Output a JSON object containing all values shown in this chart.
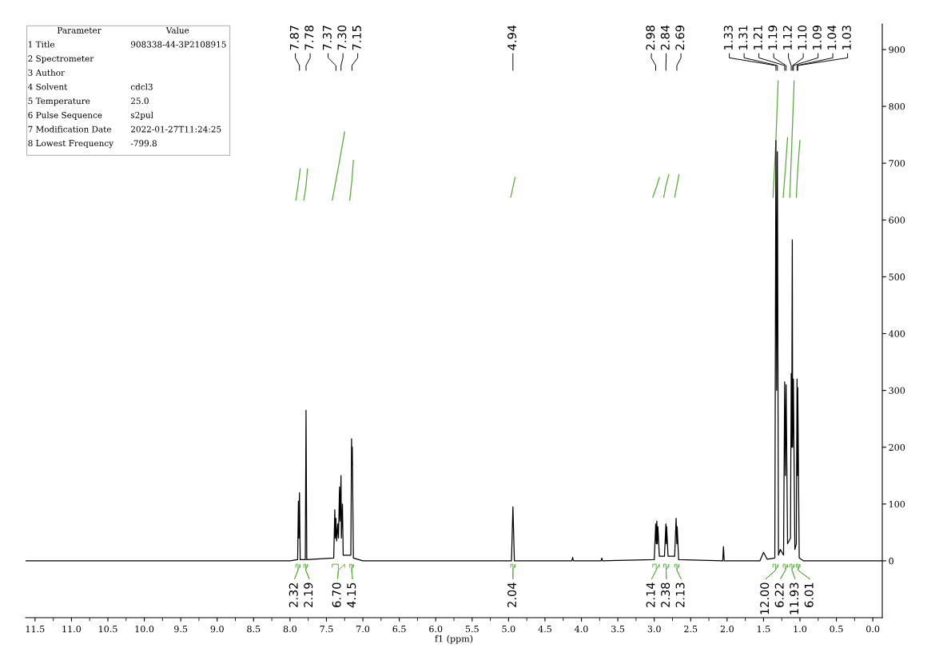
{
  "chart_data": {
    "type": "line",
    "xlabel": "f1 (ppm)",
    "xlim": [
      11.63,
      -0.13
    ],
    "ylim": [
      -100,
      945
    ],
    "xticks": [
      11.5,
      {
        "value": 11,
        "label": "11.0"
      },
      10.5,
      {
        "value": 10,
        "label": "10.0"
      },
      9.5,
      {
        "value": 9,
        "label": "9.0"
      },
      8.5,
      {
        "value": 8,
        "label": "8.0"
      },
      7.5,
      {
        "value": 7,
        "label": "7.0"
      },
      6.5,
      {
        "value": 6,
        "label": "6.0"
      },
      5.5,
      {
        "value": 5,
        "label": "5.0"
      },
      4.5,
      {
        "value": 4,
        "label": "4.0"
      },
      3.5,
      {
        "value": 3,
        "label": "3.0"
      },
      2.5,
      {
        "value": 2,
        "label": "2.0"
      },
      1.5,
      {
        "value": 1,
        "label": "1.0"
      },
      0.5,
      {
        "value": 0,
        "label": "0.0"
      }
    ],
    "yticks": [
      0,
      100,
      200,
      300,
      400,
      500,
      600,
      700,
      800,
      900
    ],
    "grid": false,
    "marker": "none",
    "line_style": "solid",
    "series": [
      {
        "color": "#000000",
        "x": [
          11.63,
          8.0,
          7.895,
          7.885,
          7.879,
          7.87,
          7.86,
          7.79,
          7.78,
          7.77,
          7.4,
          7.385,
          7.378,
          7.37,
          7.36,
          7.345,
          7.335,
          7.32,
          7.313,
          7.3,
          7.295,
          7.28,
          7.27,
          7.165,
          7.155,
          7.15,
          7.145,
          7.13,
          7.0,
          4.96,
          4.94,
          4.92,
          4.13,
          4.12,
          4.11,
          3.73,
          3.72,
          3.71,
          3.0,
          2.98,
          2.972,
          2.965,
          2.958,
          2.95,
          2.93,
          2.86,
          2.84,
          2.835,
          2.83,
          2.81,
          2.72,
          2.7,
          2.69,
          2.685,
          2.665,
          2.06,
          2.05,
          2.04,
          1.55,
          1.5,
          1.45,
          1.345,
          1.33,
          1.32,
          1.31,
          1.295,
          1.27,
          1.225,
          1.21,
          1.2,
          1.19,
          1.17,
          1.13,
          1.12,
          1.113,
          1.105,
          1.1,
          1.09,
          1.07,
          1.05,
          1.04,
          1.035,
          1.03,
          1.01,
          0.95,
          -0.13
        ],
        "values": [
          0,
          0,
          2,
          105,
          40,
          120,
          2,
          2,
          265,
          2,
          5,
          90,
          40,
          75,
          35,
          65,
          40,
          130,
          70,
          150,
          40,
          100,
          10,
          10,
          215,
          170,
          200,
          5,
          0,
          0,
          95,
          0,
          0,
          6,
          0,
          0,
          5,
          0,
          2,
          65,
          30,
          70,
          30,
          60,
          8,
          8,
          65,
          30,
          60,
          8,
          8,
          75,
          30,
          60,
          2,
          0,
          25,
          0,
          0,
          15,
          3,
          5,
          740,
          300,
          720,
          10,
          20,
          10,
          315,
          150,
          310,
          30,
          40,
          330,
          200,
          565,
          200,
          320,
          20,
          30,
          320,
          150,
          305,
          5,
          0,
          0
        ]
      },
      {
        "color": "#5aa83c",
        "x": [
          7.92,
          7.89,
          7.86,
          null,
          7.81,
          7.78,
          7.76,
          null,
          7.42,
          7.34,
          7.25,
          null,
          7.18,
          7.15,
          7.13,
          null,
          4.97,
          4.94,
          4.91,
          null,
          3.02,
          2.97,
          2.93,
          null,
          2.87,
          2.84,
          2.8,
          null,
          2.72,
          2.69,
          2.66,
          null,
          1.37,
          1.33,
          1.3,
          null,
          1.23,
          1.2,
          1.17,
          null,
          1.14,
          1.11,
          1.08,
          null,
          1.05,
          1.03,
          1.0
        ],
        "values": [
          635,
          660,
          690,
          null,
          635,
          660,
          690,
          null,
          635,
          690,
          755,
          null,
          635,
          670,
          705,
          null,
          640,
          658,
          675,
          null,
          640,
          658,
          675,
          null,
          640,
          660,
          680,
          null,
          640,
          660,
          680,
          null,
          640,
          740,
          845,
          null,
          640,
          690,
          745,
          null,
          640,
          740,
          845,
          null,
          640,
          690,
          740
        ]
      }
    ],
    "annotations": [
      "Parameter",
      "Value",
      "1 Title",
      "908338-44-3P2108915",
      "2 Spectrometer",
      "3 Author",
      "4 Solvent",
      "cdcl3",
      "5 Temperature",
      "25.0",
      "6 Pulse Sequence",
      "s2pul",
      "7 Modification Date",
      "2022-01-27T11:24:25",
      "8 Lowest Frequency",
      "-799.8",
      "2.32",
      "2.19",
      "6.70",
      "4.15",
      "2.04",
      "2.14",
      "2.38",
      "2.13",
      "12.00",
      "6.22",
      "11.93",
      "6.01",
      "7.87",
      "7.78",
      "7.37",
      "7.30",
      "7.15",
      "4.94",
      "2.98",
      "2.84",
      "2.69",
      "1.33",
      "1.31",
      "1.21",
      "1.19",
      "1.12",
      "1.10",
      "1.09",
      "1.04",
      "1.03"
    ]
  }
}
